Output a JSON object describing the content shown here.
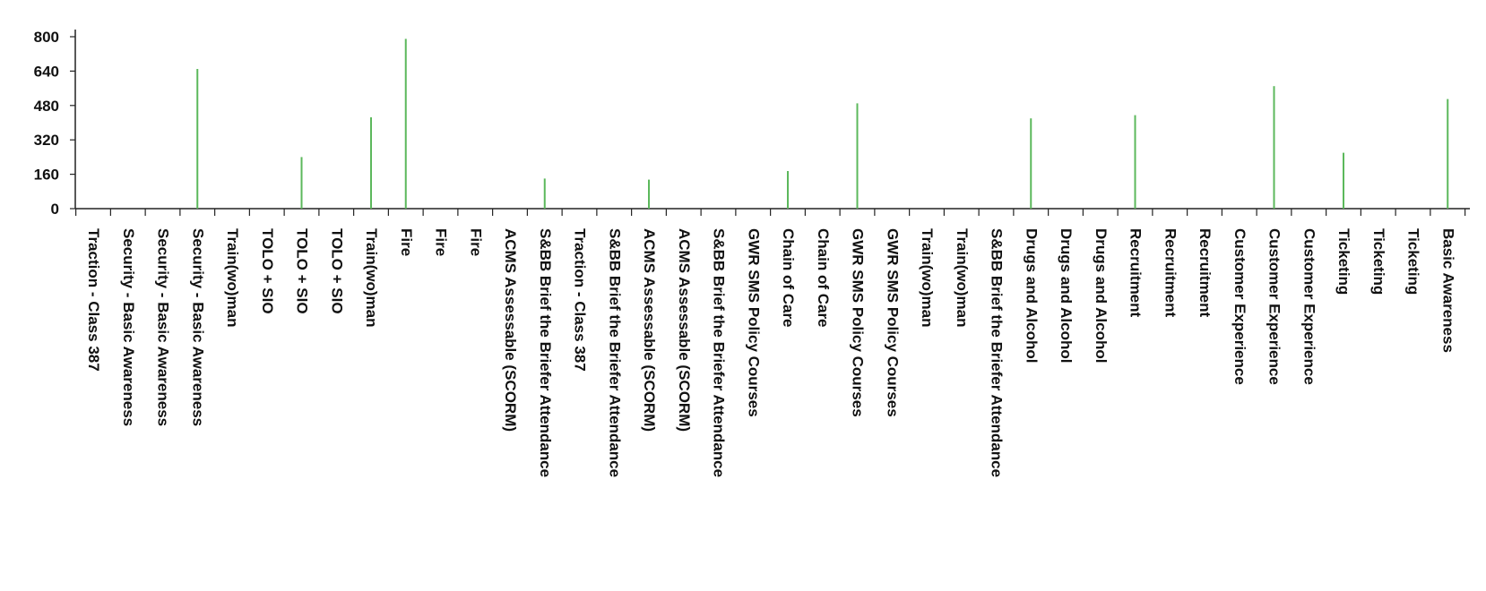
{
  "chart_data": {
    "type": "bar",
    "title": "",
    "xlabel": "",
    "ylabel": "",
    "ylim": [
      0,
      800
    ],
    "yticks": [
      0,
      160,
      320,
      480,
      640,
      800
    ],
    "ytick_labels": [
      "0",
      "160",
      "320",
      "480",
      "640",
      "800"
    ],
    "grid": false,
    "legend": "none",
    "bar_color": "#5cb85c",
    "categories": [
      "Traction - Class 387",
      "Security - Basic Awareness",
      "Security - Basic Awareness",
      "Security - Basic Awareness",
      "Train(wo)man",
      "TOLO + SIO",
      "TOLO + SIO",
      "TOLO + SIO",
      "Train(wo)man",
      "Fire",
      "Fire",
      "Fire",
      "ACMS Assessable (SCORM)",
      "S&BB Brief the Briefer Attendance",
      "Traction - Class 387",
      "S&BB Brief the Briefer Attendance",
      "ACMS Assessable (SCORM)",
      "ACMS Assessable (SCORM)",
      "S&BB Brief the Briefer Attendance",
      "GWR SMS Policy Courses",
      "Chain of Care",
      "Chain of Care",
      "GWR SMS Policy Courses",
      "GWR SMS Policy Courses",
      "Train(wo)man",
      "Train(wo)man",
      "S&BB Brief the Briefer Attendance",
      "Drugs and Alcohol",
      "Drugs and Alcohol",
      "Drugs and Alcohol",
      "Recruitment",
      "Recruitment",
      "Recruitment",
      "Customer Experience",
      "Customer Experience",
      "Customer Experience",
      "Ticketing",
      "Ticketing",
      "Ticketing",
      "Basic Awareness"
    ],
    "values": [
      0,
      0,
      0,
      650,
      0,
      0,
      240,
      0,
      425,
      790,
      0,
      0,
      0,
      140,
      0,
      0,
      135,
      0,
      0,
      0,
      175,
      0,
      490,
      0,
      0,
      0,
      0,
      420,
      0,
      0,
      435,
      0,
      0,
      0,
      570,
      0,
      260,
      0,
      0,
      510
    ]
  }
}
